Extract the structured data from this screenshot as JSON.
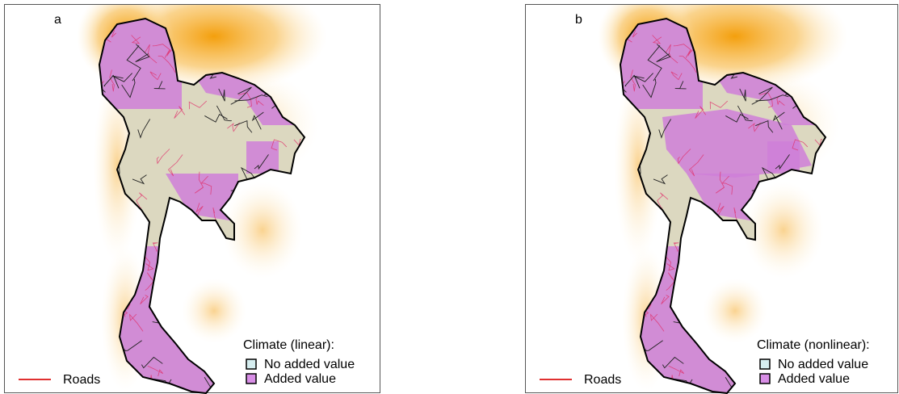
{
  "panels": [
    {
      "label": "a",
      "roads_label": "Roads",
      "legend_title": "Climate (linear):",
      "legend_items": [
        "No added value",
        "Added value"
      ]
    },
    {
      "label": "b",
      "roads_label": "Roads",
      "legend_title": "Climate (nonlinear):",
      "legend_items": [
        "No added value",
        "Added value"
      ]
    }
  ]
}
